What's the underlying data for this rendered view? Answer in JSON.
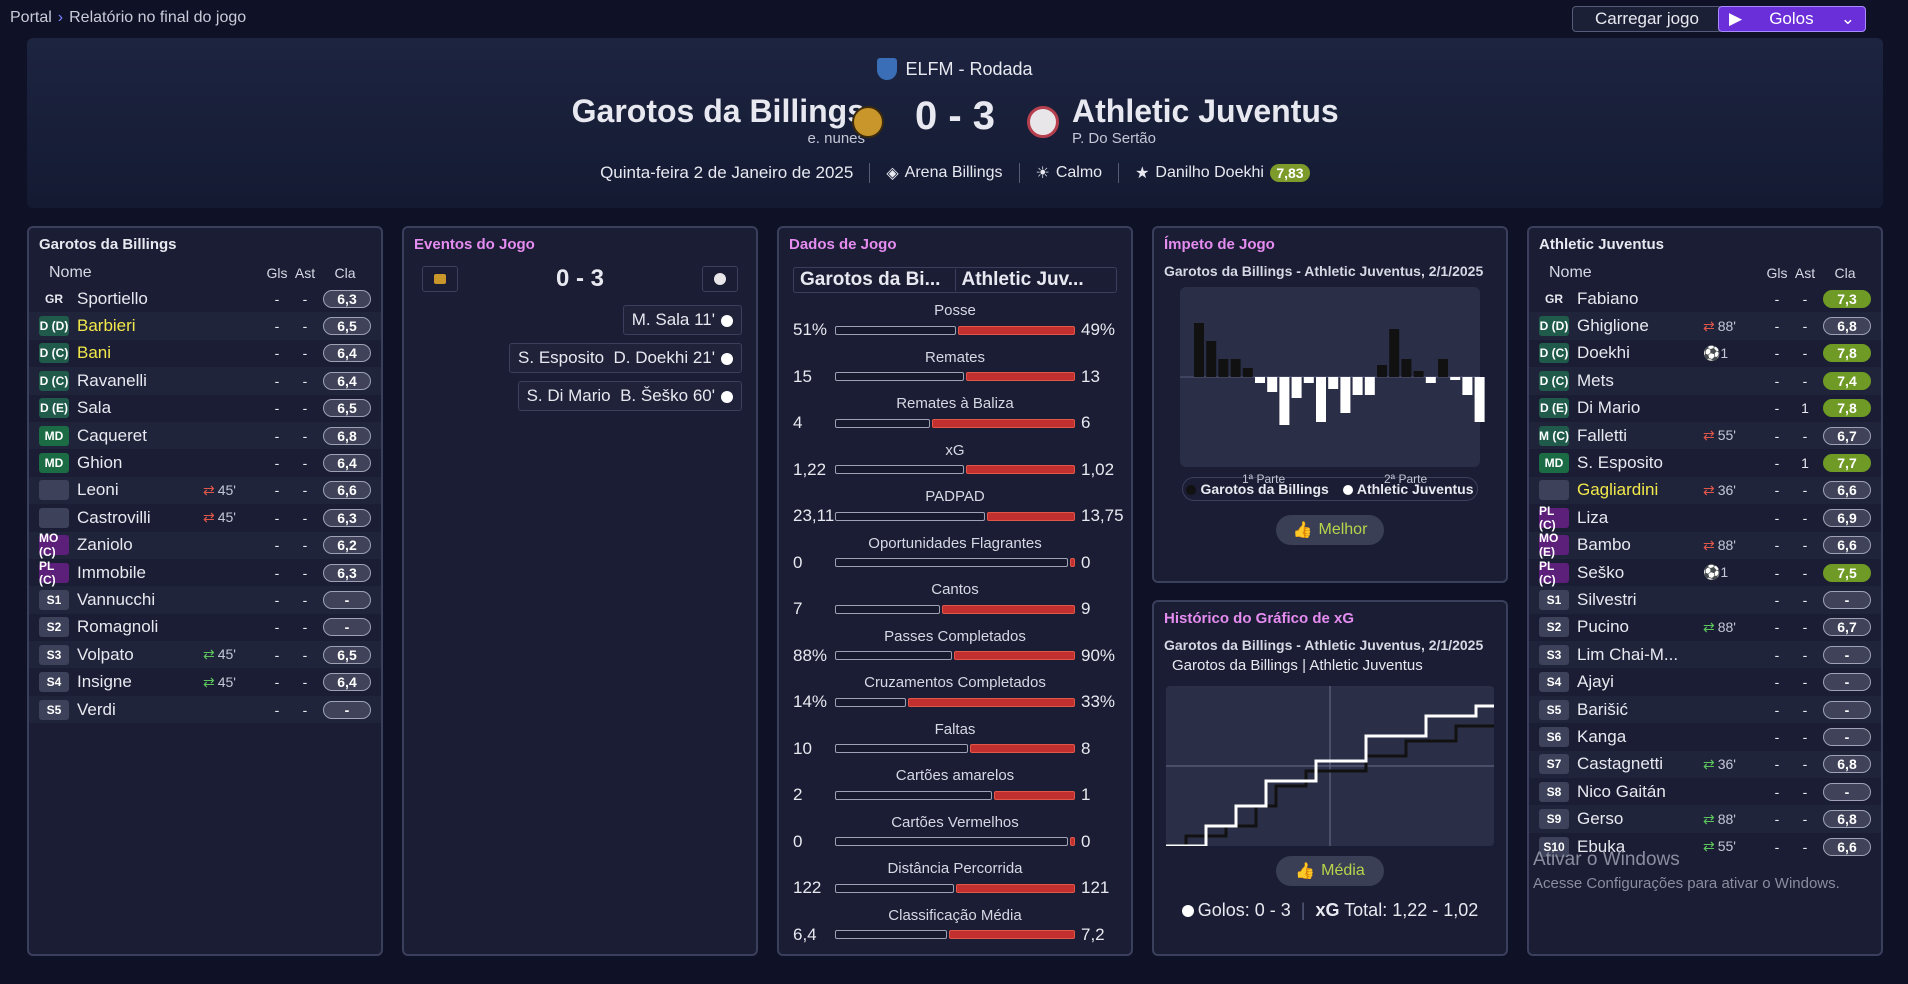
{
  "breadcrumb": {
    "root": "Portal",
    "current": "Relatório no final do jogo"
  },
  "toolbar": {
    "load_label": "Carregar jogo",
    "goals_label": "Golos"
  },
  "match": {
    "competition": "ELFM - Rodada",
    "home": {
      "name": "Garotos da Billings",
      "manager": "e. nunes"
    },
    "away": {
      "name": "Athletic Juventus",
      "manager": "P. Do Sertão"
    },
    "score": "0 - 3",
    "date": "Quinta-feira 2 de Janeiro de 2025",
    "stadium": "Arena Billings",
    "weather": "Calmo",
    "pom_name": "Danilho Doekhi",
    "pom_rating": "7,83"
  },
  "home_panel": {
    "title": "Garotos da Billings",
    "headers": {
      "name": "Nome",
      "goals": "Gls",
      "assists": "Ast",
      "rating": "Cla"
    },
    "players": [
      {
        "pos": "GR",
        "type": "gk",
        "name": "Sportiello",
        "sub": "",
        "subdir": "",
        "g": "-",
        "a": "-",
        "r": "6,3",
        "hl": false,
        "green": false
      },
      {
        "pos": "D (D)",
        "type": "def",
        "name": "Barbieri",
        "sub": "",
        "subdir": "",
        "g": "-",
        "a": "-",
        "r": "6,5",
        "hl": true,
        "green": false
      },
      {
        "pos": "D (C)",
        "type": "def",
        "name": "Bani",
        "sub": "",
        "subdir": "",
        "g": "-",
        "a": "-",
        "r": "6,4",
        "hl": true,
        "green": false
      },
      {
        "pos": "D (C)",
        "type": "def",
        "name": "Ravanelli",
        "sub": "",
        "subdir": "",
        "g": "-",
        "a": "-",
        "r": "6,4",
        "hl": false,
        "green": false
      },
      {
        "pos": "D (E)",
        "type": "def",
        "name": "Sala",
        "sub": "",
        "subdir": "",
        "g": "-",
        "a": "-",
        "r": "6,5",
        "hl": false,
        "green": false
      },
      {
        "pos": "MD",
        "type": "mid",
        "name": "Caqueret",
        "sub": "",
        "subdir": "",
        "g": "-",
        "a": "-",
        "r": "6,8",
        "hl": false,
        "green": false
      },
      {
        "pos": "MD",
        "type": "mid",
        "name": "Ghion",
        "sub": "",
        "subdir": "",
        "g": "-",
        "a": "-",
        "r": "6,4",
        "hl": false,
        "green": false
      },
      {
        "pos": "",
        "type": "empty",
        "name": "Leoni",
        "sub": "45'",
        "subdir": "out",
        "g": "-",
        "a": "-",
        "r": "6,6",
        "hl": false,
        "green": false
      },
      {
        "pos": "",
        "type": "empty",
        "name": "Castrovilli",
        "sub": "45'",
        "subdir": "out",
        "g": "-",
        "a": "-",
        "r": "6,3",
        "hl": false,
        "green": false
      },
      {
        "pos": "MO (C)",
        "type": "att",
        "name": "Zaniolo",
        "sub": "",
        "subdir": "",
        "g": "-",
        "a": "-",
        "r": "6,2",
        "hl": false,
        "green": false
      },
      {
        "pos": "PL (C)",
        "type": "att",
        "name": "Immobile",
        "sub": "",
        "subdir": "",
        "g": "-",
        "a": "-",
        "r": "6,3",
        "hl": false,
        "green": false
      },
      {
        "pos": "S1",
        "type": "sub",
        "name": "Vannucchi",
        "sub": "",
        "subdir": "",
        "g": "-",
        "a": "-",
        "r": "-",
        "hl": false,
        "green": false
      },
      {
        "pos": "S2",
        "type": "sub",
        "name": "Romagnoli",
        "sub": "",
        "subdir": "",
        "g": "-",
        "a": "-",
        "r": "-",
        "hl": false,
        "green": false
      },
      {
        "pos": "S3",
        "type": "sub",
        "name": "Volpato",
        "sub": "45'",
        "subdir": "in",
        "g": "-",
        "a": "-",
        "r": "6,5",
        "hl": false,
        "green": false
      },
      {
        "pos": "S4",
        "type": "sub",
        "name": "Insigne",
        "sub": "45'",
        "subdir": "in",
        "g": "-",
        "a": "-",
        "r": "6,4",
        "hl": false,
        "green": false
      },
      {
        "pos": "S5",
        "type": "sub",
        "name": "Verdi",
        "sub": "",
        "subdir": "",
        "g": "-",
        "a": "-",
        "r": "-",
        "hl": false,
        "green": false
      }
    ]
  },
  "events": {
    "title": "Eventos do Jogo",
    "score": "0 - 3",
    "items": [
      {
        "text": "M. Sala 11'"
      },
      {
        "text": "S. Esposito  D. Doekhi 21'"
      },
      {
        "text": "S. Di Mario  B. Šeško 60'"
      }
    ]
  },
  "stats": {
    "title": "Dados de Jogo",
    "home_short": "Garotos da Bi...",
    "away_short": "Athletic Juv...",
    "rows": [
      {
        "label": "Posse",
        "h": "51%",
        "a": "49%",
        "hf": 0.51,
        "af": 0.49
      },
      {
        "label": "Remates",
        "h": "15",
        "a": "13",
        "hf": 0.54,
        "af": 0.46
      },
      {
        "label": "Remates à Baliza",
        "h": "4",
        "a": "6",
        "hf": 0.4,
        "af": 0.6
      },
      {
        "label": "xG",
        "h": "1,22",
        "a": "1,02",
        "hf": 0.54,
        "af": 0.46
      },
      {
        "label": "PADPAD",
        "h": "23,11",
        "a": "13,75",
        "hf": 0.63,
        "af": 0.37
      },
      {
        "label": "Oportunidades Flagrantes",
        "h": "0",
        "a": "0",
        "hf": 0.98,
        "af": 0.02
      },
      {
        "label": "Cantos",
        "h": "7",
        "a": "9",
        "hf": 0.44,
        "af": 0.56
      },
      {
        "label": "Passes Completados",
        "h": "88%",
        "a": "90%",
        "hf": 0.49,
        "af": 0.51
      },
      {
        "label": "Cruzamentos Completados",
        "h": "14%",
        "a": "33%",
        "hf": 0.3,
        "af": 0.7
      },
      {
        "label": "Faltas",
        "h": "10",
        "a": "8",
        "hf": 0.56,
        "af": 0.44
      },
      {
        "label": "Cartões amarelos",
        "h": "2",
        "a": "1",
        "hf": 0.66,
        "af": 0.34
      },
      {
        "label": "Cartões Vermelhos",
        "h": "0",
        "a": "0",
        "hf": 0.98,
        "af": 0.02
      },
      {
        "label": "Distância Percorrida",
        "h": "122",
        "a": "121",
        "hf": 0.5,
        "af": 0.5
      },
      {
        "label": "Classificação Média",
        "h": "6,4",
        "a": "7,2",
        "hf": 0.47,
        "af": 0.53
      }
    ]
  },
  "momentum": {
    "title": "Ímpeto de Jogo",
    "subtitle": "Garotos da Billings - Athletic Juventus, 2/1/2025",
    "half1": "1ª Parte",
    "half2": "2ª Parte",
    "legend_home": "Garotos da Billings",
    "legend_away": "Athletic Juventus",
    "home_color": "#111111",
    "away_color": "#ffffff",
    "button": "Melhor",
    "bars": [
      0.9,
      0.6,
      0.3,
      0.3,
      0.15,
      -0.1,
      -0.25,
      -0.8,
      -0.35,
      -0.1,
      -0.75,
      -0.2,
      -0.6,
      -0.3,
      -0.3,
      0.2,
      0.8,
      0.3,
      0.1,
      -0.1,
      0.3,
      -0.05,
      -0.3,
      -0.75
    ]
  },
  "xg_history": {
    "title": "Histórico do Gráfico de xG",
    "subtitle": "Garotos da Billings - Athletic Juventus, 2/1/2025",
    "home": "Garotos da Billings",
    "away": "Athletic Juventus",
    "button": "Média",
    "goals_label": "Golos: 0 - 3",
    "xg_total_label": "Total: 1,22 - 1,02"
  },
  "away_panel": {
    "title": "Athletic Juventus",
    "headers": {
      "name": "Nome",
      "goals": "Gls",
      "assists": "Ast",
      "rating": "Cla"
    },
    "players": [
      {
        "pos": "GR",
        "type": "gk",
        "name": "Fabiano",
        "sub": "",
        "subdir": "",
        "g": "-",
        "a": "-",
        "r": "7,3",
        "hl": false,
        "green": true
      },
      {
        "pos": "D (D)",
        "type": "def",
        "name": "Ghiglione",
        "sub": "88'",
        "subdir": "out",
        "g": "-",
        "a": "-",
        "r": "6,8",
        "hl": false,
        "green": false
      },
      {
        "pos": "D (C)",
        "type": "def",
        "name": "Doekhi",
        "sub": "⚽1",
        "subdir": "goal",
        "g": "-",
        "a": "-",
        "r": "7,8",
        "hl": false,
        "green": true
      },
      {
        "pos": "D (C)",
        "type": "def",
        "name": "Mets",
        "sub": "",
        "subdir": "",
        "g": "-",
        "a": "-",
        "r": "7,4",
        "hl": false,
        "green": true
      },
      {
        "pos": "D (E)",
        "type": "def",
        "name": "Di Mario",
        "sub": "",
        "subdir": "",
        "g": "-",
        "a": "1",
        "r": "7,8",
        "hl": false,
        "green": true
      },
      {
        "pos": "M (C)",
        "type": "def",
        "name": "Falletti",
        "sub": "55'",
        "subdir": "out",
        "g": "-",
        "a": "-",
        "r": "6,7",
        "hl": false,
        "green": false
      },
      {
        "pos": "MD",
        "type": "mid",
        "name": "S. Esposito",
        "sub": "",
        "subdir": "",
        "g": "-",
        "a": "1",
        "r": "7,7",
        "hl": false,
        "green": true
      },
      {
        "pos": "",
        "type": "empty",
        "name": "Gagliardini",
        "sub": "36'",
        "subdir": "out",
        "g": "-",
        "a": "-",
        "r": "6,6",
        "hl": true,
        "green": false
      },
      {
        "pos": "PL (C)",
        "type": "att",
        "name": "Liza",
        "sub": "",
        "subdir": "",
        "g": "-",
        "a": "-",
        "r": "6,9",
        "hl": false,
        "green": false
      },
      {
        "pos": "MO (E)",
        "type": "att",
        "name": "Bambo",
        "sub": "88'",
        "subdir": "out",
        "g": "-",
        "a": "-",
        "r": "6,6",
        "hl": false,
        "green": false
      },
      {
        "pos": "PL (C)",
        "type": "att",
        "name": "Seško",
        "sub": "⚽1",
        "subdir": "goal",
        "g": "-",
        "a": "-",
        "r": "7,5",
        "hl": false,
        "green": true
      },
      {
        "pos": "S1",
        "type": "sub",
        "name": "Silvestri",
        "sub": "",
        "subdir": "",
        "g": "-",
        "a": "-",
        "r": "-",
        "hl": false,
        "green": false
      },
      {
        "pos": "S2",
        "type": "sub",
        "name": "Pucino",
        "sub": "88'",
        "subdir": "in",
        "g": "-",
        "a": "-",
        "r": "6,7",
        "hl": false,
        "green": false
      },
      {
        "pos": "S3",
        "type": "sub",
        "name": "Lim Chai-M...",
        "sub": "",
        "subdir": "",
        "g": "-",
        "a": "-",
        "r": "-",
        "hl": false,
        "green": false
      },
      {
        "pos": "S4",
        "type": "sub",
        "name": "Ajayi",
        "sub": "",
        "subdir": "",
        "g": "-",
        "a": "-",
        "r": "-",
        "hl": false,
        "green": false
      },
      {
        "pos": "S5",
        "type": "sub",
        "name": "Barišić",
        "sub": "",
        "subdir": "",
        "g": "-",
        "a": "-",
        "r": "-",
        "hl": false,
        "green": false
      },
      {
        "pos": "S6",
        "type": "sub",
        "name": "Kanga",
        "sub": "",
        "subdir": "",
        "g": "-",
        "a": "-",
        "r": "-",
        "hl": false,
        "green": false
      },
      {
        "pos": "S7",
        "type": "sub",
        "name": "Castagnetti",
        "sub": "36'",
        "subdir": "in",
        "g": "-",
        "a": "-",
        "r": "6,8",
        "hl": false,
        "green": false
      },
      {
        "pos": "S8",
        "type": "sub",
        "name": "Nico Gaitán",
        "sub": "",
        "subdir": "",
        "g": "-",
        "a": "-",
        "r": "-",
        "hl": false,
        "green": false
      },
      {
        "pos": "S9",
        "type": "sub",
        "name": "Gerso",
        "sub": "88'",
        "subdir": "in",
        "g": "-",
        "a": "-",
        "r": "6,8",
        "hl": false,
        "green": false
      },
      {
        "pos": "S10",
        "type": "sub",
        "name": "Ebuka",
        "sub": "55'",
        "subdir": "in",
        "g": "-",
        "a": "-",
        "r": "6,6",
        "hl": false,
        "green": false
      }
    ]
  },
  "watermark": {
    "line1": "Ativar o Windows",
    "line2": "Acesse Configurações para ativar o Windows."
  }
}
